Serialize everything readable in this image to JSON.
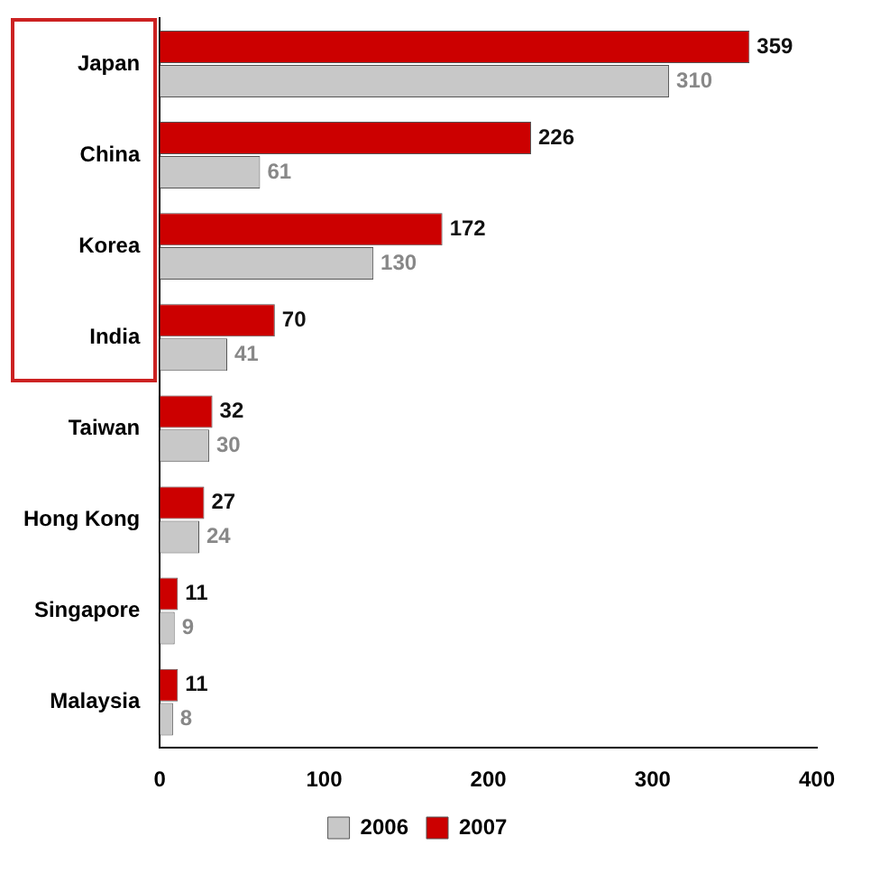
{
  "chart_data": {
    "type": "bar",
    "orientation": "horizontal",
    "categories": [
      "Japan",
      "China",
      "Korea",
      "India",
      "Taiwan",
      "Hong Kong",
      "Singapore",
      "Malaysia"
    ],
    "series": [
      {
        "name": "2007",
        "color": "#cc0000",
        "values": [
          359,
          226,
          172,
          70,
          32,
          27,
          11,
          11
        ]
      },
      {
        "name": "2006",
        "color": "#c8c8c8",
        "values": [
          310,
          61,
          130,
          41,
          30,
          24,
          9,
          8
        ]
      }
    ],
    "xlim": [
      0,
      400
    ],
    "xticks": [
      0,
      100,
      200,
      300,
      400
    ],
    "grid": false,
    "legend": "bottom",
    "data_labels": true
  }
}
